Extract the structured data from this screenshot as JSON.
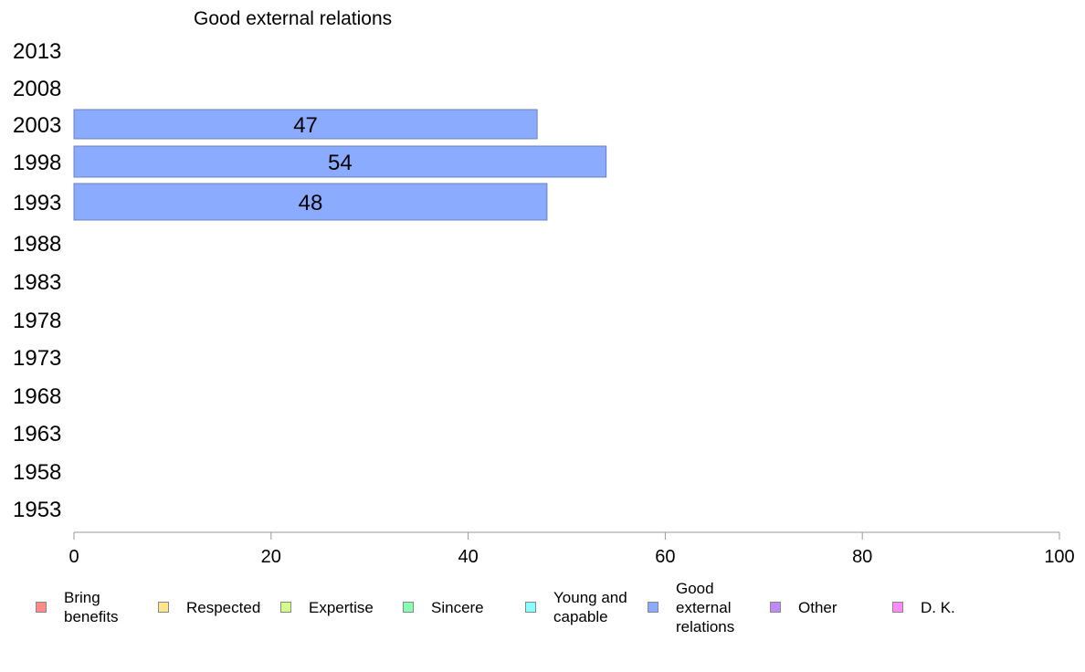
{
  "chart_data": {
    "type": "bar",
    "orientation": "horizontal",
    "title": "Good external relations",
    "categories": [
      "2013",
      "2008",
      "2003",
      "1998",
      "1993",
      "1988",
      "1983",
      "1978",
      "1973",
      "1968",
      "1963",
      "1958",
      "1953"
    ],
    "series": [
      {
        "name": "Good external relations",
        "values": [
          null,
          null,
          47,
          54,
          48,
          null,
          null,
          null,
          null,
          null,
          null,
          null,
          null
        ]
      }
    ],
    "xlim": [
      0,
      100
    ],
    "xticks": [
      "0",
      "20",
      "40",
      "60",
      "80",
      "100"
    ],
    "grid": false,
    "legend_position": "bottom",
    "bar_color": "#8aabff",
    "legend": [
      {
        "label": "Bring benefits",
        "color": "#ff8a8a"
      },
      {
        "label": "Respected",
        "color": "#ffe68a"
      },
      {
        "label": "Expertise",
        "color": "#d2ff8a"
      },
      {
        "label": "Sincere",
        "color": "#8affb0"
      },
      {
        "label": "Young and capable",
        "color": "#8affff"
      },
      {
        "label": "Good external relations",
        "color": "#8aabff"
      },
      {
        "label": "Other",
        "color": "#c08aff"
      },
      {
        "label": "D. K.",
        "color": "#ff8aff"
      }
    ]
  }
}
